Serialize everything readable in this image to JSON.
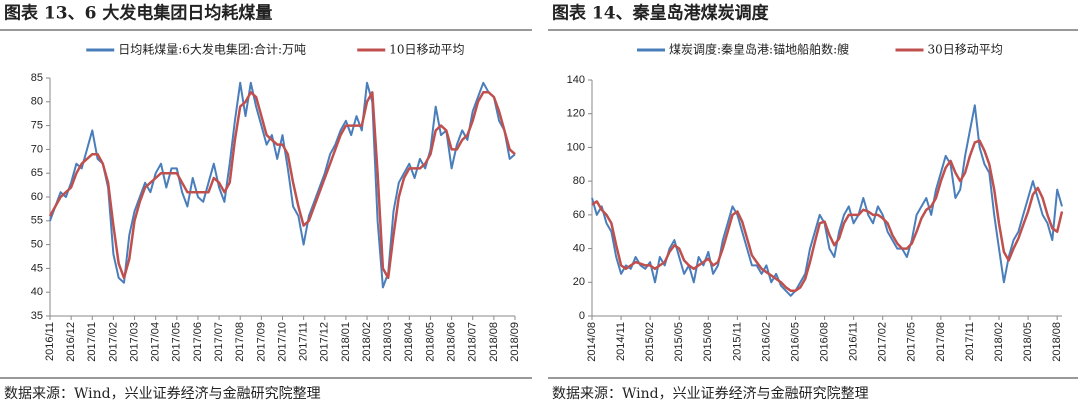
{
  "chart_data": [
    {
      "type": "line",
      "title": "图表 13、6 大发电集团日均耗煤量",
      "note": "数据来源：Wind，兴业证券经济与金融研究院整理",
      "categories": [
        "2016/11",
        null,
        null,
        null,
        "2016/12",
        null,
        null,
        null,
        "2017/01",
        null,
        null,
        null,
        "2017/02",
        null,
        null,
        null,
        "2017/03",
        null,
        null,
        null,
        "2017/04",
        null,
        null,
        null,
        "2017/05",
        null,
        null,
        null,
        "2017/06",
        null,
        null,
        null,
        "2017/07",
        null,
        null,
        null,
        "2017/08",
        null,
        null,
        null,
        "2017/09",
        null,
        null,
        null,
        "2017/10",
        null,
        null,
        null,
        "2017/11",
        null,
        null,
        null,
        "2017/12",
        null,
        null,
        null,
        "2018/01",
        null,
        null,
        null,
        "2018/02",
        null,
        null,
        null,
        "2018/03",
        null,
        null,
        null,
        "2018/04",
        null,
        null,
        null,
        "2018/05",
        null,
        null,
        null,
        "2018/06",
        null,
        null,
        null,
        "2018/07",
        null,
        null,
        null,
        "2018/08",
        null,
        null,
        null,
        "2018/09"
      ],
      "series": [
        {
          "name": "日均耗煤量:6大发电集团:合计:万吨",
          "color": "#4a7ebb",
          "values": [
            55,
            58,
            61,
            60,
            63,
            67,
            66,
            70,
            74,
            68,
            67,
            62,
            48,
            43,
            42,
            52,
            57,
            60,
            63,
            61,
            65,
            67,
            62,
            66,
            66,
            61,
            58,
            64,
            60,
            59,
            63,
            67,
            62,
            59,
            67,
            76,
            84,
            77,
            84,
            79,
            75,
            71,
            73,
            68,
            73,
            66,
            58,
            56,
            50,
            56,
            59,
            62,
            65,
            69,
            71,
            74,
            76,
            73,
            77,
            74,
            84,
            80,
            55,
            41,
            44,
            57,
            63,
            65,
            67,
            64,
            68,
            66,
            70,
            79,
            73,
            74,
            66,
            71,
            74,
            72,
            78,
            81,
            84,
            82,
            81,
            76,
            74,
            68,
            69
          ]
        },
        {
          "name": "10日移动平均",
          "color": "#c0504d",
          "values": [
            56,
            58,
            60,
            61,
            62,
            65,
            67,
            68,
            69,
            69,
            67,
            63,
            54,
            46,
            43,
            47,
            55,
            59,
            62,
            63,
            64,
            65,
            65,
            65,
            65,
            63,
            61,
            61,
            61,
            61,
            61,
            64,
            63,
            61,
            63,
            72,
            79,
            80,
            82,
            81,
            77,
            73,
            72,
            71,
            71,
            69,
            63,
            58,
            54,
            55,
            58,
            61,
            64,
            67,
            70,
            73,
            75,
            75,
            75,
            75,
            80,
            82,
            65,
            45,
            43,
            52,
            60,
            64,
            66,
            66,
            66,
            67,
            69,
            74,
            75,
            74,
            70,
            70,
            72,
            73,
            76,
            80,
            82,
            82,
            81,
            78,
            74,
            70,
            69
          ]
        }
      ],
      "ylim": [
        35,
        85
      ],
      "yticks": [
        35,
        40,
        45,
        50,
        55,
        60,
        65,
        70,
        75,
        80,
        85
      ],
      "legend": "top"
    },
    {
      "type": "line",
      "title": "图表 14、秦皇岛港煤炭调度",
      "note": "数据来源：Wind，兴业证券经济与金融研究院整理",
      "categories": [
        "2014/08",
        null,
        null,
        null,
        null,
        null,
        "2014/11",
        null,
        null,
        null,
        null,
        null,
        "2015/02",
        null,
        null,
        null,
        null,
        null,
        "2015/05",
        null,
        null,
        null,
        null,
        null,
        "2015/08",
        null,
        null,
        null,
        null,
        null,
        "2015/11",
        null,
        null,
        null,
        null,
        null,
        "2016/02",
        null,
        null,
        null,
        null,
        null,
        "2016/05",
        null,
        null,
        null,
        null,
        null,
        "2016/08",
        null,
        null,
        null,
        null,
        null,
        "2016/11",
        null,
        null,
        null,
        null,
        null,
        "2017/02",
        null,
        null,
        null,
        null,
        null,
        "2017/05",
        null,
        null,
        null,
        null,
        null,
        "2017/08",
        null,
        null,
        null,
        null,
        null,
        "2017/11",
        null,
        null,
        null,
        null,
        null,
        "2018/02",
        null,
        null,
        null,
        null,
        null,
        "2018/05",
        null,
        null,
        null,
        null,
        null,
        "2018/08",
        null
      ],
      "series": [
        {
          "name": "煤炭调度:秦皇岛港:锚地船舶数:艘",
          "color": "#4a7ebb",
          "values": [
            70,
            60,
            65,
            55,
            50,
            35,
            25,
            30,
            28,
            35,
            30,
            28,
            32,
            20,
            35,
            30,
            40,
            45,
            35,
            25,
            30,
            20,
            35,
            30,
            38,
            25,
            30,
            45,
            55,
            65,
            60,
            50,
            40,
            30,
            30,
            25,
            30,
            20,
            25,
            18,
            15,
            12,
            15,
            20,
            25,
            40,
            50,
            60,
            55,
            40,
            35,
            50,
            60,
            65,
            55,
            60,
            70,
            60,
            55,
            65,
            60,
            50,
            45,
            40,
            40,
            35,
            45,
            60,
            65,
            70,
            60,
            75,
            85,
            95,
            90,
            70,
            75,
            95,
            110,
            125,
            100,
            90,
            85,
            60,
            40,
            20,
            35,
            45,
            50,
            60,
            70,
            80,
            70,
            60,
            55,
            45,
            75,
            65
          ]
        },
        {
          "name": "30日移动平均",
          "color": "#c0504d",
          "values": [
            66,
            68,
            63,
            60,
            55,
            42,
            30,
            28,
            30,
            32,
            31,
            30,
            30,
            28,
            30,
            32,
            38,
            42,
            40,
            33,
            30,
            28,
            30,
            32,
            34,
            30,
            32,
            40,
            50,
            60,
            62,
            56,
            46,
            36,
            32,
            28,
            26,
            24,
            22,
            20,
            17,
            15,
            15,
            17,
            22,
            32,
            44,
            55,
            56,
            48,
            42,
            46,
            55,
            60,
            60,
            60,
            63,
            62,
            60,
            60,
            58,
            55,
            48,
            43,
            40,
            40,
            43,
            50,
            58,
            63,
            65,
            70,
            80,
            88,
            92,
            85,
            80,
            85,
            95,
            103,
            104,
            98,
            90,
            75,
            55,
            38,
            33,
            40,
            46,
            54,
            62,
            72,
            76,
            70,
            60,
            52,
            50,
            62
          ]
        }
      ],
      "ylim": [
        0,
        140
      ],
      "yticks": [
        0,
        20,
        40,
        60,
        80,
        100,
        120,
        140
      ],
      "legend": "top"
    }
  ]
}
